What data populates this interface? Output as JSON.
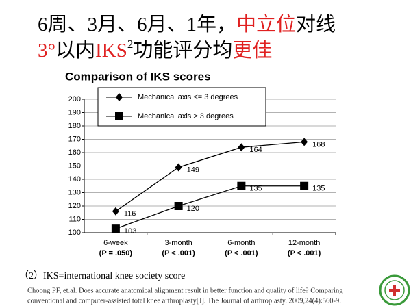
{
  "header": {
    "lines": [
      [
        {
          "text": "6周、3月、6月、1年，",
          "color": "#000000"
        },
        {
          "text": "中立位",
          "color": "#e02020"
        },
        {
          "text": "对线",
          "color": "#000000"
        }
      ],
      [
        {
          "text": "3°",
          "color": "#e02020"
        },
        {
          "text": "以内",
          "color": "#000000"
        },
        {
          "text": "IKS",
          "color": "#e02020"
        },
        {
          "text": "2",
          "color": "#000000",
          "sup": true
        },
        {
          "text": "功能评分均",
          "color": "#000000"
        },
        {
          "text": "更佳",
          "color": "#e02020"
        }
      ]
    ]
  },
  "chart_data": {
    "type": "line",
    "title": "Comparison of IKS scores",
    "categories": [
      "6-week",
      "3-month",
      "6-month",
      "12-month"
    ],
    "p_values": [
      "(P = .050)",
      "(P < .001)",
      "(P < .001)",
      "(P < .001)"
    ],
    "series": [
      {
        "name": "Mechanical axis <= 3 degrees",
        "color": "#000000",
        "marker": "diamond",
        "values": [
          116,
          149,
          164,
          168
        ]
      },
      {
        "name": "Mechanical axis > 3 degrees",
        "color": "#000000",
        "marker": "square",
        "values": [
          103,
          120,
          135,
          135
        ]
      }
    ],
    "ylim": [
      100,
      200
    ],
    "yticks": [
      100,
      110,
      120,
      130,
      140,
      150,
      160,
      170,
      180,
      190,
      200
    ],
    "grid": true,
    "legend": "upper left"
  },
  "footnote": "（2）IKS=international knee society score",
  "citation": [
    "Choong PF, et.al. Does accurate anatomical alignment result in better function and quality of life? Comparing",
    "conventional and computer-assisted total knee arthroplasty[J]. The Journal of arthroplasty. 2009,24(4):560-9."
  ]
}
